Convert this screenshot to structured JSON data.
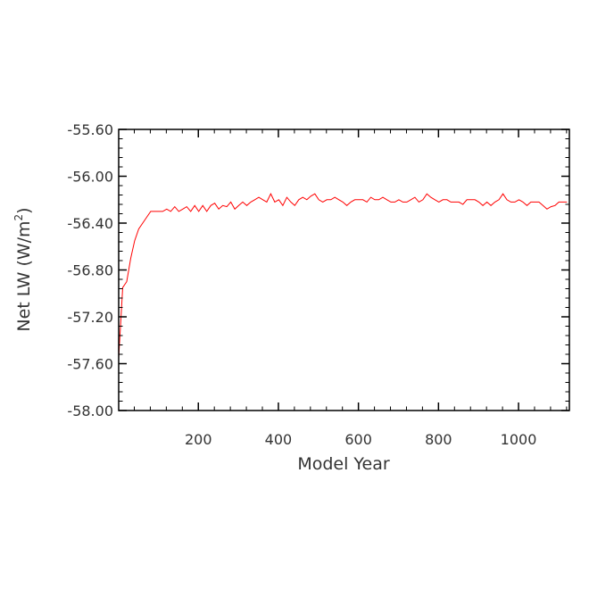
{
  "chart_data": {
    "type": "line",
    "xlabel": "Model Year",
    "ylabel_main": "Net LW (W/m",
    "ylabel_sup": "2",
    "ylabel_close": ")",
    "xlim": [
      1,
      1127
    ],
    "ylim": [
      -58.0,
      -55.6
    ],
    "x_ticks": [
      200,
      400,
      600,
      800,
      1000
    ],
    "x_tick_labels": [
      "200",
      "400",
      "600",
      "800",
      "1000"
    ],
    "y_ticks": [
      -58.0,
      -57.6,
      -57.2,
      -56.8,
      -56.4,
      -56.0,
      -55.6
    ],
    "y_tick_labels": [
      "-58.00",
      "-57.60",
      "-57.20",
      "-56.80",
      "-56.40",
      "-56.00",
      "-55.60"
    ],
    "x_minor_step": 40,
    "y_minor_step": 0.08,
    "grid": false,
    "series": [
      {
        "color": "#ff0000",
        "x_start": 1,
        "x_step": 10,
        "values": [
          -57.55,
          -56.95,
          -56.9,
          -56.7,
          -56.55,
          -56.45,
          -56.4,
          -56.35,
          -56.3,
          -56.3,
          -56.3,
          -56.3,
          -56.28,
          -56.3,
          -56.26,
          -56.3,
          -56.28,
          -56.26,
          -56.3,
          -56.25,
          -56.3,
          -56.25,
          -56.3,
          -56.25,
          -56.23,
          -56.28,
          -56.25,
          -56.26,
          -56.22,
          -56.28,
          -56.25,
          -56.22,
          -56.25,
          -56.22,
          -56.2,
          -56.18,
          -56.2,
          -56.22,
          -56.15,
          -56.22,
          -56.2,
          -56.25,
          -56.18,
          -56.22,
          -56.25,
          -56.2,
          -56.18,
          -56.2,
          -56.17,
          -56.15,
          -56.2,
          -56.22,
          -56.2,
          -56.2,
          -56.18,
          -56.2,
          -56.22,
          -56.25,
          -56.22,
          -56.2,
          -56.2,
          -56.2,
          -56.22,
          -56.18,
          -56.2,
          -56.2,
          -56.18,
          -56.2,
          -56.22,
          -56.22,
          -56.2,
          -56.22,
          -56.22,
          -56.2,
          -56.18,
          -56.22,
          -56.2,
          -56.15,
          -56.18,
          -56.2,
          -56.22,
          -56.2,
          -56.2,
          -56.22,
          -56.22,
          -56.22,
          -56.24,
          -56.2,
          -56.2,
          -56.2,
          -56.22,
          -56.25,
          -56.22,
          -56.25,
          -56.22,
          -56.2,
          -56.15,
          -56.2,
          -56.22,
          -56.22,
          -56.2,
          -56.22,
          -56.25,
          -56.22,
          -56.22,
          -56.22,
          -56.25,
          -56.28,
          -56.26,
          -56.25,
          -56.22,
          -56.22,
          -56.22
        ]
      }
    ]
  }
}
